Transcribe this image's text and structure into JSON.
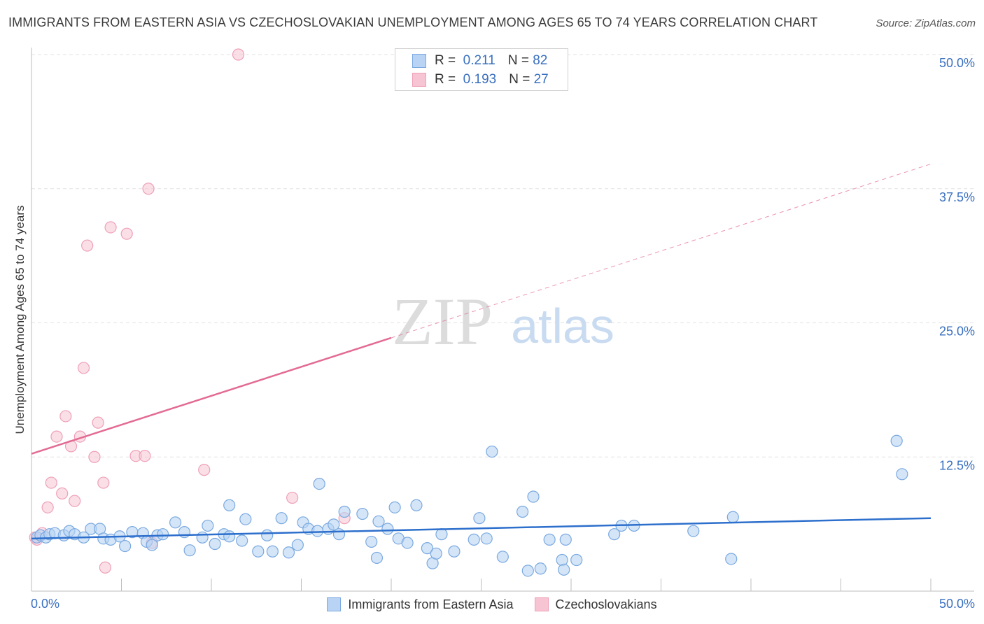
{
  "title": "IMMIGRANTS FROM EASTERN ASIA VS CZECHOSLOVAKIAN UNEMPLOYMENT AMONG AGES 65 TO 74 YEARS CORRELATION CHART",
  "source": "Source: ZipAtlas.com",
  "watermark": {
    "zip": "ZIP",
    "atlas": "atlas"
  },
  "colors": {
    "blue_fill": "#b8d3f3",
    "blue_stroke": "#7aa9e0",
    "blue_line": "#2d6fcc",
    "pink_fill": "#f7c4d3",
    "pink_stroke": "#eea0b8",
    "pink_line": "#e36b93",
    "tick_label": "#3a70c0",
    "grid": "#e2e2e2"
  },
  "legend_top": [
    {
      "r_label": "R =",
      "r_value": "0.211",
      "n_label": "N =",
      "n_value": "82"
    },
    {
      "r_label": "R =",
      "r_value": "0.193",
      "n_label": "N =",
      "n_value": "27"
    }
  ],
  "chart_data": {
    "type": "scatter",
    "title": "IMMIGRANTS FROM EASTERN ASIA VS CZECHOSLOVAKIAN UNEMPLOYMENT AMONG AGES 65 TO 74 YEARS CORRELATION CHART",
    "xlabel": "",
    "ylabel": "Unemployment Among Ages 65 to 74 years",
    "xlim": [
      0,
      50
    ],
    "ylim": [
      0,
      50
    ],
    "x_tick_labels": [
      "0.0%",
      "50.0%"
    ],
    "y_ticks": [
      12.5,
      25.0,
      37.5,
      50.0
    ],
    "y_tick_labels": [
      "12.5%",
      "25.0%",
      "37.5%",
      "50.0%"
    ],
    "legend": [
      "Immigrants from Eastern Asia",
      "Czechoslovakians"
    ],
    "series": [
      {
        "name": "Immigrants from Eastern Asia",
        "r": 0.211,
        "n": 82,
        "trend": {
          "x0": 0,
          "y0": 4.9,
          "x1": 50,
          "y1": 6.8
        },
        "points": [
          [
            0.3,
            5.0
          ],
          [
            0.5,
            5.2
          ],
          [
            0.8,
            5.0
          ],
          [
            1.0,
            5.3
          ],
          [
            1.3,
            5.4
          ],
          [
            1.8,
            5.2
          ],
          [
            2.1,
            5.6
          ],
          [
            2.4,
            5.3
          ],
          [
            2.9,
            5.0
          ],
          [
            3.3,
            5.8
          ],
          [
            3.8,
            5.8
          ],
          [
            4.0,
            4.9
          ],
          [
            4.4,
            4.8
          ],
          [
            4.9,
            5.1
          ],
          [
            5.2,
            4.2
          ],
          [
            5.6,
            5.5
          ],
          [
            6.2,
            5.4
          ],
          [
            6.4,
            4.6
          ],
          [
            6.7,
            4.3
          ],
          [
            7.0,
            5.2
          ],
          [
            7.3,
            5.3
          ],
          [
            8.0,
            6.4
          ],
          [
            8.5,
            5.5
          ],
          [
            8.8,
            3.8
          ],
          [
            9.5,
            5.0
          ],
          [
            9.8,
            6.1
          ],
          [
            10.2,
            4.4
          ],
          [
            10.7,
            5.3
          ],
          [
            11.0,
            5.1
          ],
          [
            11.0,
            8.0
          ],
          [
            11.7,
            4.7
          ],
          [
            11.9,
            6.7
          ],
          [
            12.6,
            3.7
          ],
          [
            13.1,
            5.2
          ],
          [
            13.4,
            3.7
          ],
          [
            13.9,
            6.8
          ],
          [
            14.3,
            3.6
          ],
          [
            14.8,
            4.3
          ],
          [
            15.1,
            6.4
          ],
          [
            15.4,
            5.8
          ],
          [
            15.9,
            5.6
          ],
          [
            16.0,
            10.0
          ],
          [
            16.5,
            5.8
          ],
          [
            16.8,
            6.2
          ],
          [
            17.1,
            5.3
          ],
          [
            17.4,
            7.4
          ],
          [
            18.4,
            7.2
          ],
          [
            18.9,
            4.6
          ],
          [
            19.2,
            3.1
          ],
          [
            19.3,
            6.5
          ],
          [
            19.8,
            5.8
          ],
          [
            20.2,
            7.8
          ],
          [
            20.4,
            4.9
          ],
          [
            20.9,
            4.5
          ],
          [
            21.4,
            8.0
          ],
          [
            22.0,
            4.0
          ],
          [
            22.3,
            2.6
          ],
          [
            22.5,
            3.5
          ],
          [
            22.8,
            5.3
          ],
          [
            23.5,
            3.7
          ],
          [
            24.6,
            4.8
          ],
          [
            24.9,
            6.8
          ],
          [
            25.3,
            4.9
          ],
          [
            25.6,
            13.0
          ],
          [
            26.2,
            3.2
          ],
          [
            27.3,
            7.4
          ],
          [
            27.6,
            1.9
          ],
          [
            27.9,
            8.8
          ],
          [
            28.3,
            2.1
          ],
          [
            28.8,
            4.8
          ],
          [
            29.5,
            2.9
          ],
          [
            29.7,
            4.8
          ],
          [
            29.6,
            2.0
          ],
          [
            30.3,
            2.9
          ],
          [
            32.4,
            5.3
          ],
          [
            32.8,
            6.1
          ],
          [
            33.5,
            6.1
          ],
          [
            36.8,
            5.6
          ],
          [
            38.9,
            3.0
          ],
          [
            39.0,
            6.9
          ],
          [
            48.1,
            14.0
          ],
          [
            48.4,
            10.9
          ]
        ]
      },
      {
        "name": "Czechoslovakians",
        "r": 0.193,
        "n": 27,
        "trend": {
          "x0": 0,
          "y0": 12.8,
          "x1": 20.0,
          "y1": 23.6,
          "dash_x1": 50,
          "dash_y1": 39.8
        },
        "points": [
          [
            0.2,
            5.0
          ],
          [
            0.3,
            4.8
          ],
          [
            0.6,
            5.4
          ],
          [
            0.9,
            7.8
          ],
          [
            1.1,
            10.1
          ],
          [
            1.4,
            14.4
          ],
          [
            1.7,
            9.1
          ],
          [
            1.9,
            16.3
          ],
          [
            2.2,
            13.5
          ],
          [
            2.4,
            8.4
          ],
          [
            2.7,
            14.4
          ],
          [
            2.9,
            20.8
          ],
          [
            3.1,
            32.2
          ],
          [
            3.5,
            12.5
          ],
          [
            3.7,
            15.7
          ],
          [
            4.0,
            10.1
          ],
          [
            4.1,
            2.2
          ],
          [
            4.4,
            33.9
          ],
          [
            5.3,
            33.3
          ],
          [
            5.8,
            12.6
          ],
          [
            6.3,
            12.6
          ],
          [
            6.5,
            37.5
          ],
          [
            6.7,
            4.5
          ],
          [
            9.6,
            11.3
          ],
          [
            11.5,
            50.0
          ],
          [
            14.5,
            8.7
          ],
          [
            17.4,
            6.8
          ]
        ]
      }
    ]
  }
}
